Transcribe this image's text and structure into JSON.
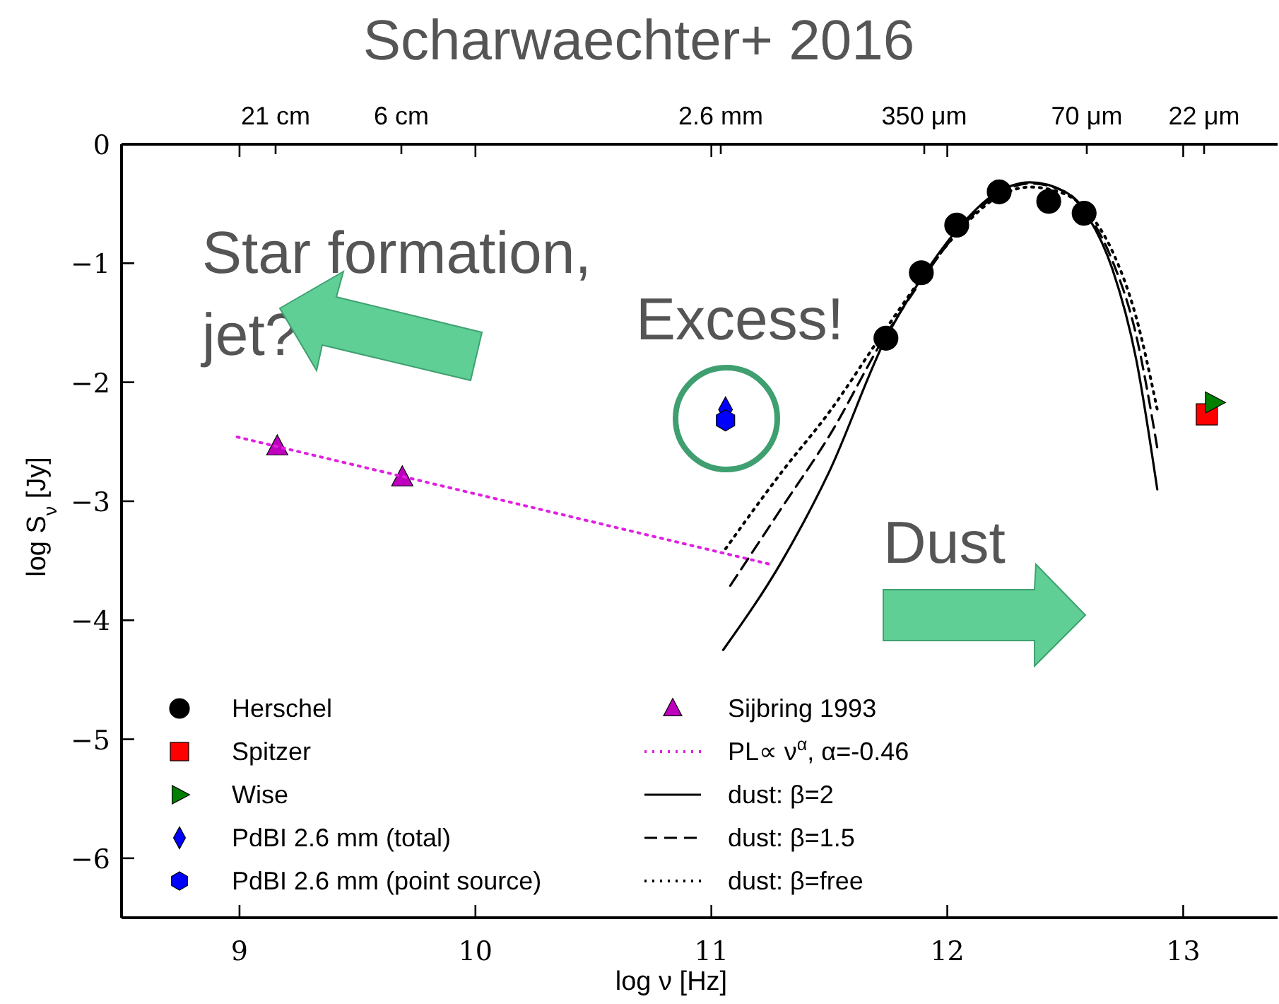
{
  "chart_data": {
    "type": "scatter",
    "title": "Scharwaechter+ 2016",
    "xlabel": "log ν [Hz]",
    "ylabel": "log S$_{ν}$ [Jy]",
    "xlim": [
      8.5,
      13.4
    ],
    "xticks": [
      9,
      10,
      11,
      12,
      13
    ],
    "ylim": [
      -6.5,
      0
    ],
    "yticks": [
      0,
      -1,
      -2,
      -3,
      -4,
      -5,
      -6
    ],
    "legend": "bottom left",
    "annotations": [
      "Star formation,\njet?",
      "Excess!",
      "Dust",
      "21 cm",
      "6 cm",
      "2.6 mm",
      "350 μm",
      "70 μm",
      "22 μm"
    ],
    "series": [
      {
        "name": "Herschel",
        "marker": "circle",
        "color": "#000000",
        "x": [
          11.74,
          11.89,
          12.04,
          12.22,
          12.43,
          12.58
        ],
        "values": [
          -1.63,
          -1.08,
          -0.68,
          -0.4,
          -0.48,
          -0.58
        ]
      },
      {
        "name": "Spitzer",
        "marker": "square",
        "color": "#ff0000",
        "x": [
          13.1
        ],
        "values": [
          -2.27
        ]
      },
      {
        "name": "Wise",
        "type": "scatter",
        "marker": "triangle-right",
        "color": "#008000",
        "x": [
          13.13
        ],
        "values": [
          -2.17
        ]
      },
      {
        "name": "PdBI 2.6 mm (total)",
        "type": "scatter",
        "marker": "diamond",
        "color": "#0000ff",
        "x": [
          11.06
        ],
        "values": [
          -2.23
        ]
      },
      {
        "name": "PdBI 2.6 mm (point source)",
        "type": "scatter",
        "color": "#0000ff",
        "x": [
          11.06
        ],
        "values": [
          -2.32
        ]
      },
      {
        "name": "Sijbring 1993",
        "type": "scatter",
        "marker": "triangle",
        "color": "#bf00bf",
        "x": [
          9.16,
          9.69
        ],
        "values": [
          -2.54,
          -2.8
        ]
      },
      {
        "name": "PL∝ ν$^{α}$, α=-0.46",
        "type": "line",
        "line_style": "dotted",
        "color": "#e020e0",
        "x": [
          8.99,
          11.25
        ],
        "values": [
          -2.46,
          -3.53
        ]
      },
      {
        "name": "dust: β=2",
        "type": "line",
        "line_style": "solid",
        "color": "#000000",
        "x": [
          11.05,
          11.3,
          11.5,
          11.74,
          11.9,
          12.05,
          12.2,
          12.35,
          12.5,
          12.6,
          12.7,
          12.8,
          12.89
        ],
        "values": [
          -4.25,
          -3.5,
          -2.75,
          -1.63,
          -1.1,
          -0.7,
          -0.42,
          -0.32,
          -0.4,
          -0.62,
          -1.05,
          -1.8,
          -2.9
        ]
      },
      {
        "name": "dust: β=1.5",
        "type": "line",
        "line_style": "dashed",
        "color": "#000000",
        "x": [
          11.08,
          11.3,
          11.5,
          11.74,
          11.9,
          12.05,
          12.2,
          12.35,
          12.5,
          12.6,
          12.7,
          12.8,
          12.89
        ],
        "values": [
          -3.71,
          -3.05,
          -2.45,
          -1.6,
          -1.12,
          -0.72,
          -0.44,
          -0.33,
          -0.4,
          -0.6,
          -0.98,
          -1.6,
          -2.55
        ]
      },
      {
        "name": "dust: β=free",
        "type": "line",
        "line_style": "dotted",
        "color": "#000000",
        "x": [
          11.06,
          11.3,
          11.5,
          11.74,
          11.9,
          12.05,
          12.2,
          12.35,
          12.5,
          12.6,
          12.7,
          12.8,
          12.89
        ],
        "values": [
          -3.4,
          -2.75,
          -2.25,
          -1.55,
          -1.1,
          -0.73,
          -0.46,
          -0.36,
          -0.42,
          -0.58,
          -0.9,
          -1.45,
          -2.23
        ]
      }
    ]
  }
}
